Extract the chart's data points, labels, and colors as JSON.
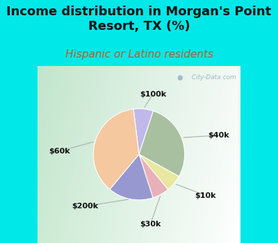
{
  "title": "Income distribution in Morgan's Point\nResort, TX (%)",
  "subtitle": "Hispanic or Latino residents",
  "slices": [
    {
      "label": "$100k",
      "value": 7,
      "color": "#c0b8e8"
    },
    {
      "label": "$40k",
      "value": 28,
      "color": "#a8c0a0"
    },
    {
      "label": "$10k",
      "value": 6,
      "color": "#e8e8a0"
    },
    {
      "label": "$30k",
      "value": 6,
      "color": "#e8b0b8"
    },
    {
      "label": "$200k",
      "value": 16,
      "color": "#9898d0"
    },
    {
      "label": "$60k",
      "value": 37,
      "color": "#f5c8a0"
    }
  ],
  "bg_color": "#00e8e8",
  "plot_bg_color": "#e0ece0",
  "watermark": "  City-Data.com",
  "title_fontsize": 13,
  "subtitle_fontsize": 11,
  "subtitle_color": "#b06030",
  "title_color": "#111111",
  "label_fontsize": 8,
  "startangle": 97
}
